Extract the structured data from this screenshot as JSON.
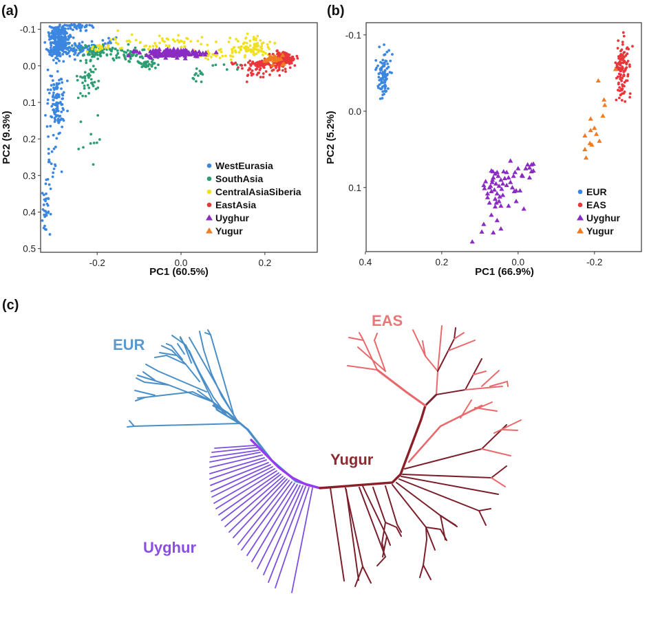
{
  "chart_data": [
    {
      "id": "a",
      "panel_label": "(a)",
      "type": "scatter",
      "xlabel": "PC1 (60.5%)",
      "ylabel": "PC2 (9.3%)",
      "xlim": [
        -0.335,
        0.325
      ],
      "ylim": [
        -0.118,
        0.51
      ],
      "y_inverted": true,
      "xticks": [
        -0.2,
        0.0,
        0.2
      ],
      "xtick_labels": [
        "-0.2",
        "0.0",
        "0.2"
      ],
      "yticks": [
        -0.1,
        0.0,
        0.1,
        0.2,
        0.3,
        0.4,
        0.5
      ],
      "ytick_labels": [
        "-0.1",
        "0.0",
        "0.1",
        "0.2",
        "0.3",
        "0.4",
        "0.5"
      ],
      "grid": false,
      "legend_position": "bottom-right",
      "legend": [
        {
          "label": "WestEurasia",
          "color": "#3b86e0",
          "marker": "circle"
        },
        {
          "label": "SouthAsia",
          "color": "#2e9e72",
          "marker": "circle"
        },
        {
          "label": "CentralAsiaSiberia",
          "color": "#f0e020",
          "marker": "circle"
        },
        {
          "label": "EastAsia",
          "color": "#e8363a",
          "marker": "circle"
        },
        {
          "label": "Uyghur",
          "color": "#8a2bc2",
          "marker": "triangle"
        },
        {
          "label": "Yugur",
          "color": "#f07b22",
          "marker": "triangle"
        }
      ],
      "series": [
        {
          "name": "WestEurasia",
          "clusters": [
            {
              "cx": -0.29,
              "cy": -0.07,
              "sx": 0.012,
              "sy": 0.025,
              "n": 260
            },
            {
              "cx": -0.245,
              "cy": -0.11,
              "sx": 0.02,
              "sy": 0.006,
              "n": 50
            },
            {
              "cx": -0.24,
              "cy": -0.05,
              "sx": 0.03,
              "sy": 0.01,
              "n": 90
            },
            {
              "cx": -0.305,
              "cy": -0.04,
              "sx": 0.006,
              "sy": 0.006,
              "n": 25
            },
            {
              "cx": -0.295,
              "cy": 0.1,
              "sx": 0.01,
              "sy": 0.035,
              "n": 110
            },
            {
              "cx": -0.31,
              "cy": 0.25,
              "sx": 0.008,
              "sy": 0.05,
              "n": 25
            },
            {
              "cx": -0.325,
              "cy": 0.39,
              "sx": 0.006,
              "sy": 0.035,
              "n": 30
            },
            {
              "cx": -0.17,
              "cy": -0.07,
              "sx": 0.008,
              "sy": 0.008,
              "n": 8
            }
          ]
        },
        {
          "name": "SouthAsia",
          "clusters": [
            {
              "cx": -0.2,
              "cy": -0.04,
              "sx": 0.02,
              "sy": 0.01,
              "n": 60
            },
            {
              "cx": -0.12,
              "cy": -0.03,
              "sx": 0.03,
              "sy": 0.01,
              "n": 70
            },
            {
              "cx": -0.085,
              "cy": -0.005,
              "sx": 0.015,
              "sy": 0.006,
              "n": 35
            },
            {
              "cx": -0.225,
              "cy": 0.03,
              "sx": 0.012,
              "sy": 0.03,
              "n": 45
            },
            {
              "cx": -0.22,
              "cy": 0.2,
              "sx": 0.015,
              "sy": 0.05,
              "n": 10
            },
            {
              "cx": 0.04,
              "cy": 0.03,
              "sx": 0.006,
              "sy": 0.01,
              "n": 12
            },
            {
              "cx": 0.1,
              "cy": 0.0,
              "sx": 0.04,
              "sy": 0.01,
              "n": 8
            }
          ]
        },
        {
          "name": "CentralAsiaSiberia",
          "clusters": [
            {
              "cx": -0.02,
              "cy": -0.065,
              "sx": 0.06,
              "sy": 0.012,
              "n": 50
            },
            {
              "cx": 0.09,
              "cy": -0.03,
              "sx": 0.03,
              "sy": 0.008,
              "n": 30
            },
            {
              "cx": 0.17,
              "cy": -0.05,
              "sx": 0.025,
              "sy": 0.012,
              "n": 90
            },
            {
              "cx": -0.2,
              "cy": -0.05,
              "sx": 0.015,
              "sy": 0.005,
              "n": 15
            },
            {
              "cx": -0.14,
              "cy": -0.07,
              "sx": 0.02,
              "sy": 0.01,
              "n": 10
            }
          ]
        },
        {
          "name": "EastAsia",
          "clusters": [
            {
              "cx": 0.245,
              "cy": -0.018,
              "sx": 0.012,
              "sy": 0.008,
              "n": 150
            },
            {
              "cx": 0.19,
              "cy": 0.01,
              "sx": 0.03,
              "sy": 0.015,
              "n": 40
            },
            {
              "cx": 0.2,
              "cy": -0.005,
              "sx": 0.03,
              "sy": 0.006,
              "n": 70
            }
          ]
        },
        {
          "name": "Uyghur",
          "clusters": [
            {
              "cx": -0.02,
              "cy": -0.035,
              "sx": 0.035,
              "sy": 0.005,
              "n": 140
            },
            {
              "cx": -0.11,
              "cy": -0.04,
              "sx": 0.002,
              "sy": 0.002,
              "n": 1
            }
          ]
        },
        {
          "name": "Yugur",
          "clusters": [
            {
              "cx": 0.22,
              "cy": -0.015,
              "sx": 0.012,
              "sy": 0.008,
              "n": 25
            }
          ]
        }
      ]
    },
    {
      "id": "b",
      "panel_label": "(b)",
      "type": "scatter",
      "xlabel": "PC1 (66.9%)",
      "ylabel": "PC2 (5.2%)",
      "xlim": [
        0.398,
        -0.323
      ],
      "x_inverted": true,
      "ylim": [
        -0.116,
        0.184
      ],
      "y_inverted": true,
      "xticks": [
        0.4,
        0.2,
        0.0,
        -0.2
      ],
      "xtick_labels": [
        "0.4",
        "0.2",
        "0.0",
        "-0.2"
      ],
      "yticks": [
        -0.1,
        0.0,
        0.1
      ],
      "ytick_labels": [
        "-0.1",
        "0.0",
        "0.1"
      ],
      "grid": false,
      "legend_position": "bottom-right",
      "legend": [
        {
          "label": "EUR",
          "color": "#3b86e0",
          "marker": "circle"
        },
        {
          "label": "EAS",
          "color": "#e8363a",
          "marker": "circle"
        },
        {
          "label": "Uyghur",
          "color": "#8a2bc2",
          "marker": "triangle"
        },
        {
          "label": "Yugur",
          "color": "#f07b22",
          "marker": "triangle"
        }
      ],
      "series": [
        {
          "name": "EUR",
          "clusters": [
            {
              "cx": 0.35,
              "cy": -0.05,
              "sx": 0.008,
              "sy": 0.016,
              "n": 90
            }
          ]
        },
        {
          "name": "EAS",
          "clusters": [
            {
              "cx": -0.273,
              "cy": -0.055,
              "sx": 0.008,
              "sy": 0.02,
              "n": 110
            }
          ]
        },
        {
          "name": "Uyghur",
          "points": [
            [
              0.12,
              0.171
            ],
            [
              0.09,
              0.148
            ],
            [
              0.095,
              0.158
            ],
            [
              0.065,
              0.159
            ],
            [
              0.045,
              0.154
            ],
            [
              0.07,
              0.136
            ],
            [
              0.055,
              0.143
            ],
            [
              0.06,
              0.125
            ],
            [
              0.08,
              0.113
            ],
            [
              0.045,
              0.124
            ],
            [
              0.06,
              0.115
            ],
            [
              0.07,
              0.105
            ],
            [
              0.075,
              0.1
            ],
            [
              0.068,
              0.093
            ],
            [
              0.065,
              0.087
            ],
            [
              0.058,
              0.095
            ],
            [
              0.05,
              0.098
            ],
            [
              0.043,
              0.102
            ],
            [
              0.055,
              0.108
            ],
            [
              0.048,
              0.112
            ],
            [
              0.062,
              0.103
            ],
            [
              0.072,
              0.098
            ],
            [
              0.085,
              0.092
            ],
            [
              0.088,
              0.101
            ],
            [
              0.09,
              0.097
            ],
            [
              0.06,
              0.082
            ],
            [
              0.066,
              0.079
            ],
            [
              0.052,
              0.085
            ],
            [
              0.045,
              0.09
            ],
            [
              0.04,
              0.095
            ],
            [
              0.035,
              0.088
            ],
            [
              0.03,
              0.08
            ],
            [
              0.025,
              0.087
            ],
            [
              0.038,
              0.079
            ],
            [
              0.02,
              0.093
            ],
            [
              0.012,
              0.085
            ],
            [
              0.008,
              0.08
            ],
            [
              0.015,
              0.1
            ],
            [
              0.005,
              0.104
            ],
            [
              -0.005,
              0.104
            ],
            [
              -0.012,
              0.085
            ],
            [
              -0.02,
              0.075
            ],
            [
              -0.025,
              0.07
            ],
            [
              -0.03,
              0.074
            ],
            [
              -0.035,
              0.07
            ],
            [
              -0.04,
              0.069
            ],
            [
              -0.035,
              0.079
            ],
            [
              -0.04,
              0.078
            ],
            [
              -0.03,
              0.087
            ],
            [
              0.0,
              0.075
            ],
            [
              0.02,
              0.065
            ],
            [
              -0.01,
              0.084
            ],
            [
              0.07,
              0.078
            ],
            [
              0.055,
              0.08
            ],
            [
              0.04,
              0.11
            ],
            [
              -0.015,
              0.128
            ],
            [
              0.005,
              0.118
            ],
            [
              0.025,
              0.124
            ],
            [
              0.01,
              0.105
            ],
            [
              0.03,
              0.097
            ],
            [
              0.05,
              0.118
            ],
            [
              0.067,
              0.09
            ],
            [
              0.057,
              0.12
            ],
            [
              0.075,
              0.12
            ],
            [
              0.08,
              0.108
            ]
          ]
        },
        {
          "name": "Yugur",
          "points": [
            [
              -0.21,
              -0.04
            ],
            [
              -0.225,
              -0.015
            ],
            [
              -0.227,
              -0.008
            ],
            [
              -0.222,
              0.006
            ],
            [
              -0.19,
              0.01
            ],
            [
              -0.2,
              0.022
            ],
            [
              -0.19,
              0.025
            ],
            [
              -0.175,
              0.032
            ],
            [
              -0.205,
              0.03
            ],
            [
              -0.213,
              0.039
            ],
            [
              -0.188,
              0.042
            ],
            [
              -0.193,
              0.044
            ],
            [
              -0.175,
              0.05
            ],
            [
              -0.178,
              0.061
            ],
            [
              -0.255,
              -0.055
            ]
          ]
        }
      ]
    }
  ],
  "panel_c": {
    "panel_label": "(c)",
    "type": "tree",
    "labels": [
      {
        "text": "EUR",
        "color": "#5a9ad0"
      },
      {
        "text": "EAS",
        "color": "#e87878"
      },
      {
        "text": "Yugur",
        "color": "#8b2a30"
      },
      {
        "text": "Uyghur",
        "color": "#8a4fe0"
      }
    ],
    "colors": {
      "eur": "#4a8ec8",
      "uyghur": "#7b4ee0",
      "uyghur_spine": "#9a3af0",
      "yugur": "#8b1f28",
      "eas_light": "#e8686c",
      "eas_dark": "#7a1e2a"
    }
  }
}
